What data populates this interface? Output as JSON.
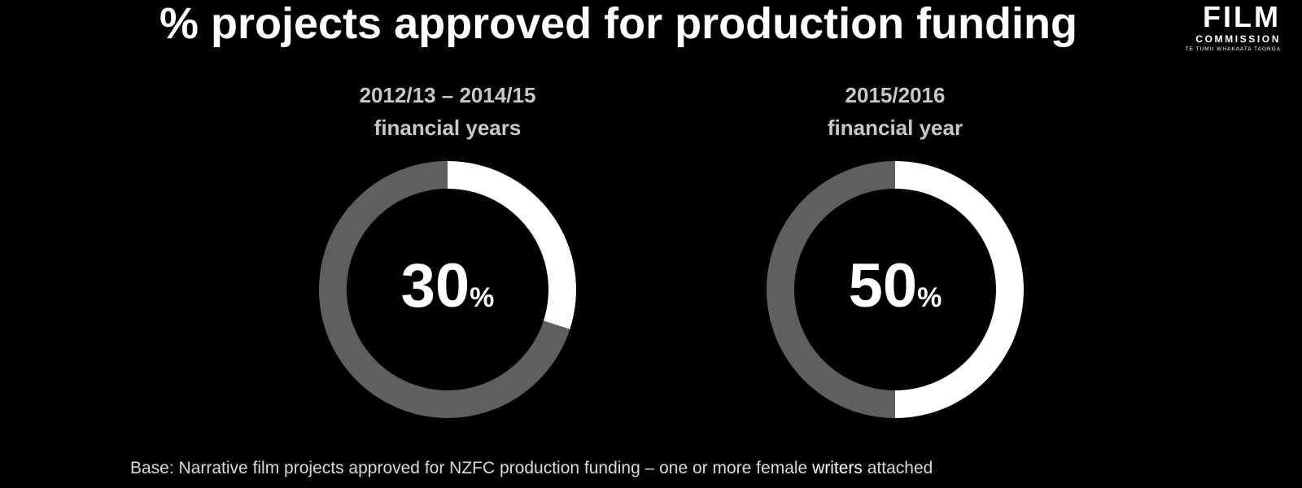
{
  "title": "% projects approved for production funding",
  "logo": {
    "main": "FILM",
    "sub": "COMMISSION",
    "tag": "TE TUMU WHAKAATA TAONGA"
  },
  "colors": {
    "background": "#000000",
    "highlight_segment": "#ffffff",
    "remainder_segment": "#5f5f5f",
    "donut_title": "#c8c8c8"
  },
  "chart_data": [
    {
      "type": "pie",
      "subtype": "donut",
      "title_line1": "2012/13 – 2014/15",
      "title_line2": "financial years",
      "center_value": "30",
      "center_unit": "%",
      "slices": [
        {
          "value": 30
        },
        {
          "value": 70
        }
      ]
    },
    {
      "type": "pie",
      "subtype": "donut",
      "title_line1": "2015/2016",
      "title_line2": "financial year",
      "center_value": "50",
      "center_unit": "%",
      "slices": [
        {
          "value": 50
        },
        {
          "value": 50
        }
      ]
    }
  ],
  "footnote": {
    "before": "Base: Narrative film projects approved for NZFC production funding – one or more female ",
    "highlight": "writers",
    "after": " attached"
  }
}
